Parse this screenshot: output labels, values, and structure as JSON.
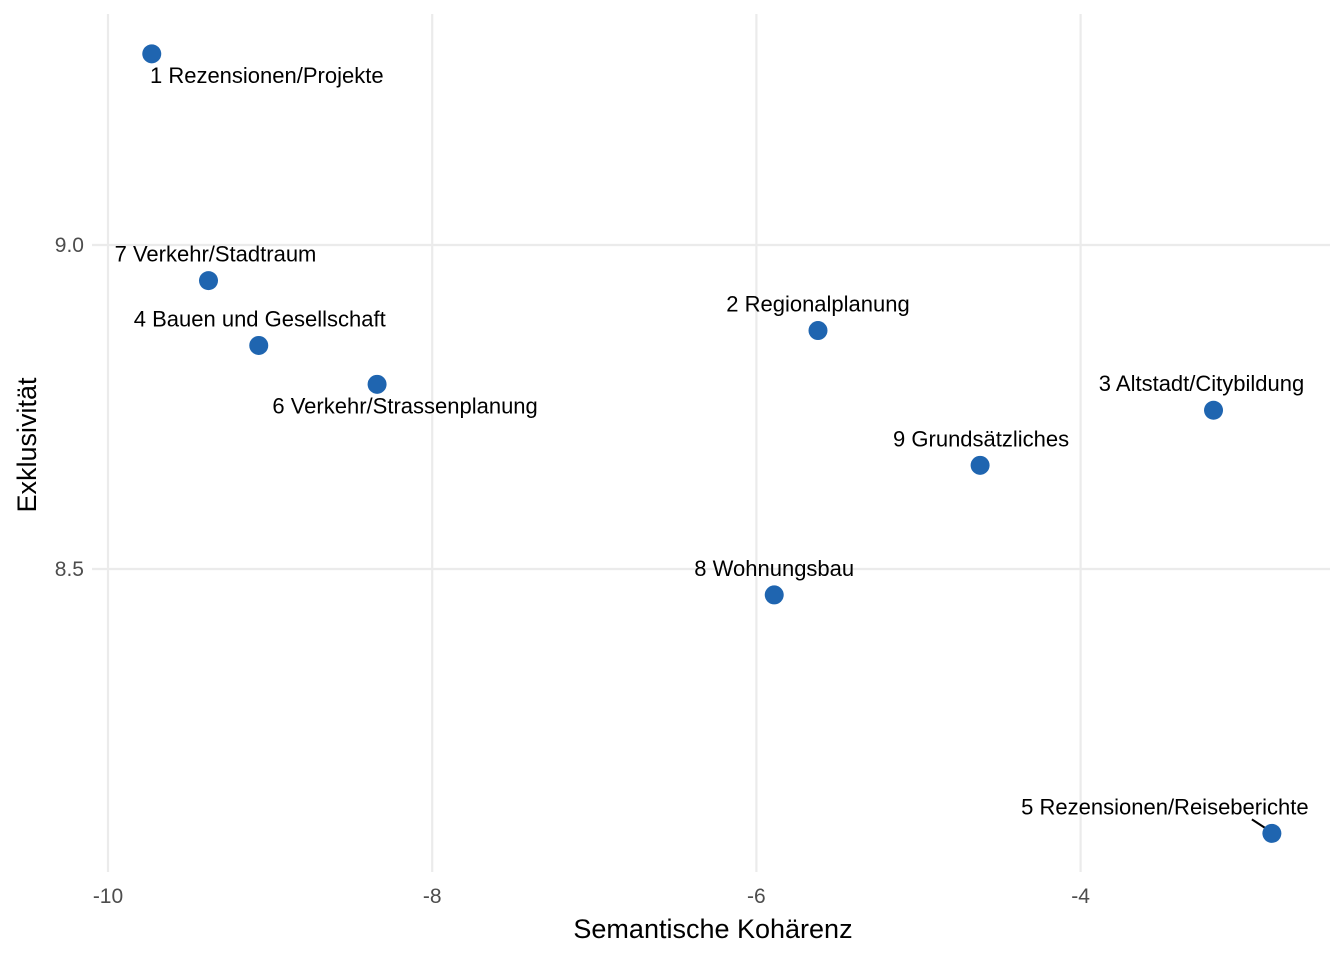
{
  "chart_data": {
    "type": "scatter",
    "title": "",
    "xlabel": "Semantische Kohärenz",
    "ylabel": "Exklusivität",
    "xlim": [
      -10,
      -2.8
    ],
    "ylim": [
      8.04,
      9.36
    ],
    "x_ticks": [
      -10,
      -8,
      -6,
      -4
    ],
    "x_tick_labels": [
      "-10",
      "-8",
      "-6",
      "-4"
    ],
    "y_ticks": [
      8.5,
      9.0
    ],
    "y_tick_labels": [
      "8.5",
      "9.0"
    ],
    "grid": true,
    "legend": "none",
    "point_color": "#1f65b0",
    "points": [
      {
        "label": "1 Rezensionen/Projekte",
        "x": -9.73,
        "y": 9.295
      },
      {
        "label": "2 Regionalplanung",
        "x": -5.62,
        "y": 8.868
      },
      {
        "label": "3 Altstadt/Citybildung",
        "x": -3.18,
        "y": 8.745
      },
      {
        "label": "4 Bauen und Gesellschaft",
        "x": -9.07,
        "y": 8.845
      },
      {
        "label": "5 Rezensionen/Reiseberichte",
        "x": -2.82,
        "y": 8.092
      },
      {
        "label": "6 Verkehr/Strassenplanung",
        "x": -8.34,
        "y": 8.785
      },
      {
        "label": "7 Verkehr/Stadtraum",
        "x": -9.38,
        "y": 8.945
      },
      {
        "label": "8 Wohnungsbau",
        "x": -5.89,
        "y": 8.46
      },
      {
        "label": "9 Grundsätzliches",
        "x": -4.62,
        "y": 8.66
      }
    ]
  }
}
